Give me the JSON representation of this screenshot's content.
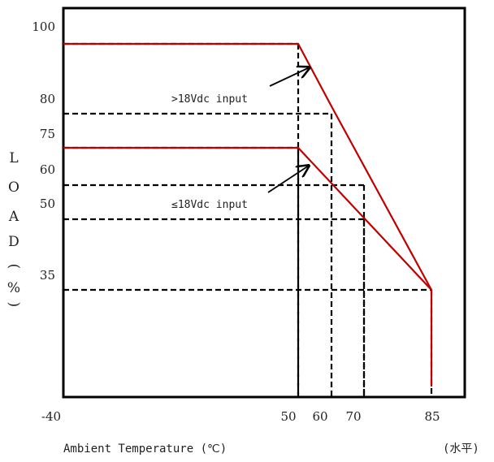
{
  "chart_data": {
    "type": "line",
    "xlabel": "Ambient Temperature (℃)",
    "xlabel_suffix": "(水平)",
    "ylabel": "LOAD(%)",
    "ylim": [
      0,
      100
    ],
    "y_ticks": [
      "100",
      "80",
      "75",
      "60",
      "50",
      "35"
    ],
    "x_ticks": [
      "-40",
      "50",
      "60",
      "70",
      "85"
    ],
    "series": [
      {
        "name": ">18Vdc input",
        "color": "#c00000",
        "x": [
          -40,
          50,
          60,
          85,
          85
        ],
        "y": [
          95,
          95,
          80,
          29,
          0
        ]
      },
      {
        "name": "≤18Vdc input",
        "color": "#c00000",
        "x": [
          -40,
          50,
          85
        ],
        "y": [
          67,
          67,
          29
        ]
      }
    ],
    "reference_lines": [
      {
        "x": 50,
        "y": 95
      },
      {
        "x": 60,
        "y": 77
      },
      {
        "x": 70,
        "y": 57
      },
      {
        "x": 50,
        "y": 67
      },
      {
        "x": 70,
        "y": 47
      },
      {
        "x": 85,
        "y": 29
      }
    ],
    "annotations": [
      {
        "text": ">18Vdc input",
        "x": -25,
        "y": 84
      },
      {
        "text": "≤18Vdc input",
        "x": -25,
        "y": 52
      }
    ],
    "grid": false,
    "legend": "none"
  }
}
